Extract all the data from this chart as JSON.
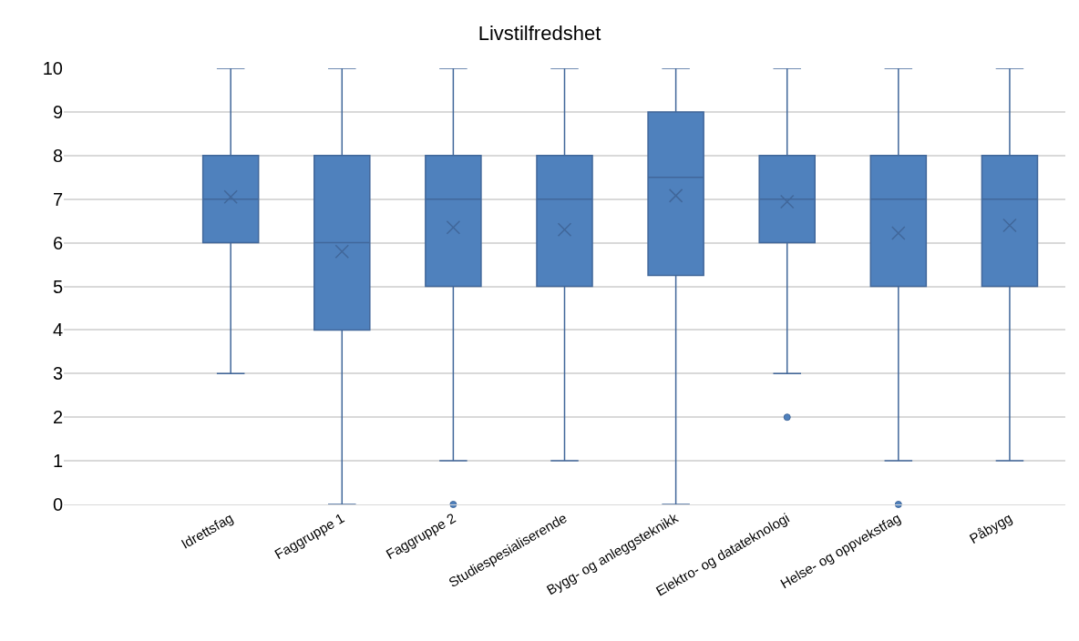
{
  "chart_data": {
    "type": "box",
    "title": "Livstilfredshet",
    "categories": [
      null,
      "Idrettsfag",
      "Faggruppe 1",
      "Faggruppe 2",
      "Studiespesialiserende",
      "Bygg- og anleggsteknikk",
      "Elektro- og datateknologi",
      "Helse- og oppvekstfag",
      "Påbygg"
    ],
    "boxes": [
      null,
      {
        "low": 3,
        "q1": 6,
        "median": 7,
        "q3": 8,
        "high": 10,
        "mean": 7.05
      },
      {
        "low": 0,
        "q1": 4,
        "median": 6,
        "q3": 8,
        "high": 10,
        "mean": 5.8
      },
      {
        "low": 1,
        "q1": 5,
        "median": 7,
        "q3": 8,
        "high": 10,
        "mean": 6.35,
        "outliers": [
          0
        ]
      },
      {
        "low": 1,
        "q1": 5,
        "median": 7,
        "q3": 8,
        "high": 10,
        "mean": 6.3
      },
      {
        "low": 0,
        "q1": 5.25,
        "median": 7.5,
        "q3": 9,
        "high": 10,
        "mean": 7.08
      },
      {
        "low": 3,
        "q1": 6,
        "median": 7,
        "q3": 8,
        "high": 10,
        "mean": 6.94,
        "outliers": [
          2
        ]
      },
      {
        "low": 1,
        "q1": 5,
        "median": 7,
        "q3": 8,
        "high": 10,
        "mean": 6.22,
        "outliers": [
          0
        ]
      },
      {
        "low": 1,
        "q1": 5,
        "median": 7,
        "q3": 8,
        "high": 10,
        "mean": 6.4
      }
    ],
    "color": "#4f81bd",
    "ylim": [
      0,
      10
    ],
    "yticks": [
      0,
      1,
      2,
      3,
      4,
      5,
      6,
      7,
      8,
      9,
      10
    ],
    "grid": "y"
  }
}
